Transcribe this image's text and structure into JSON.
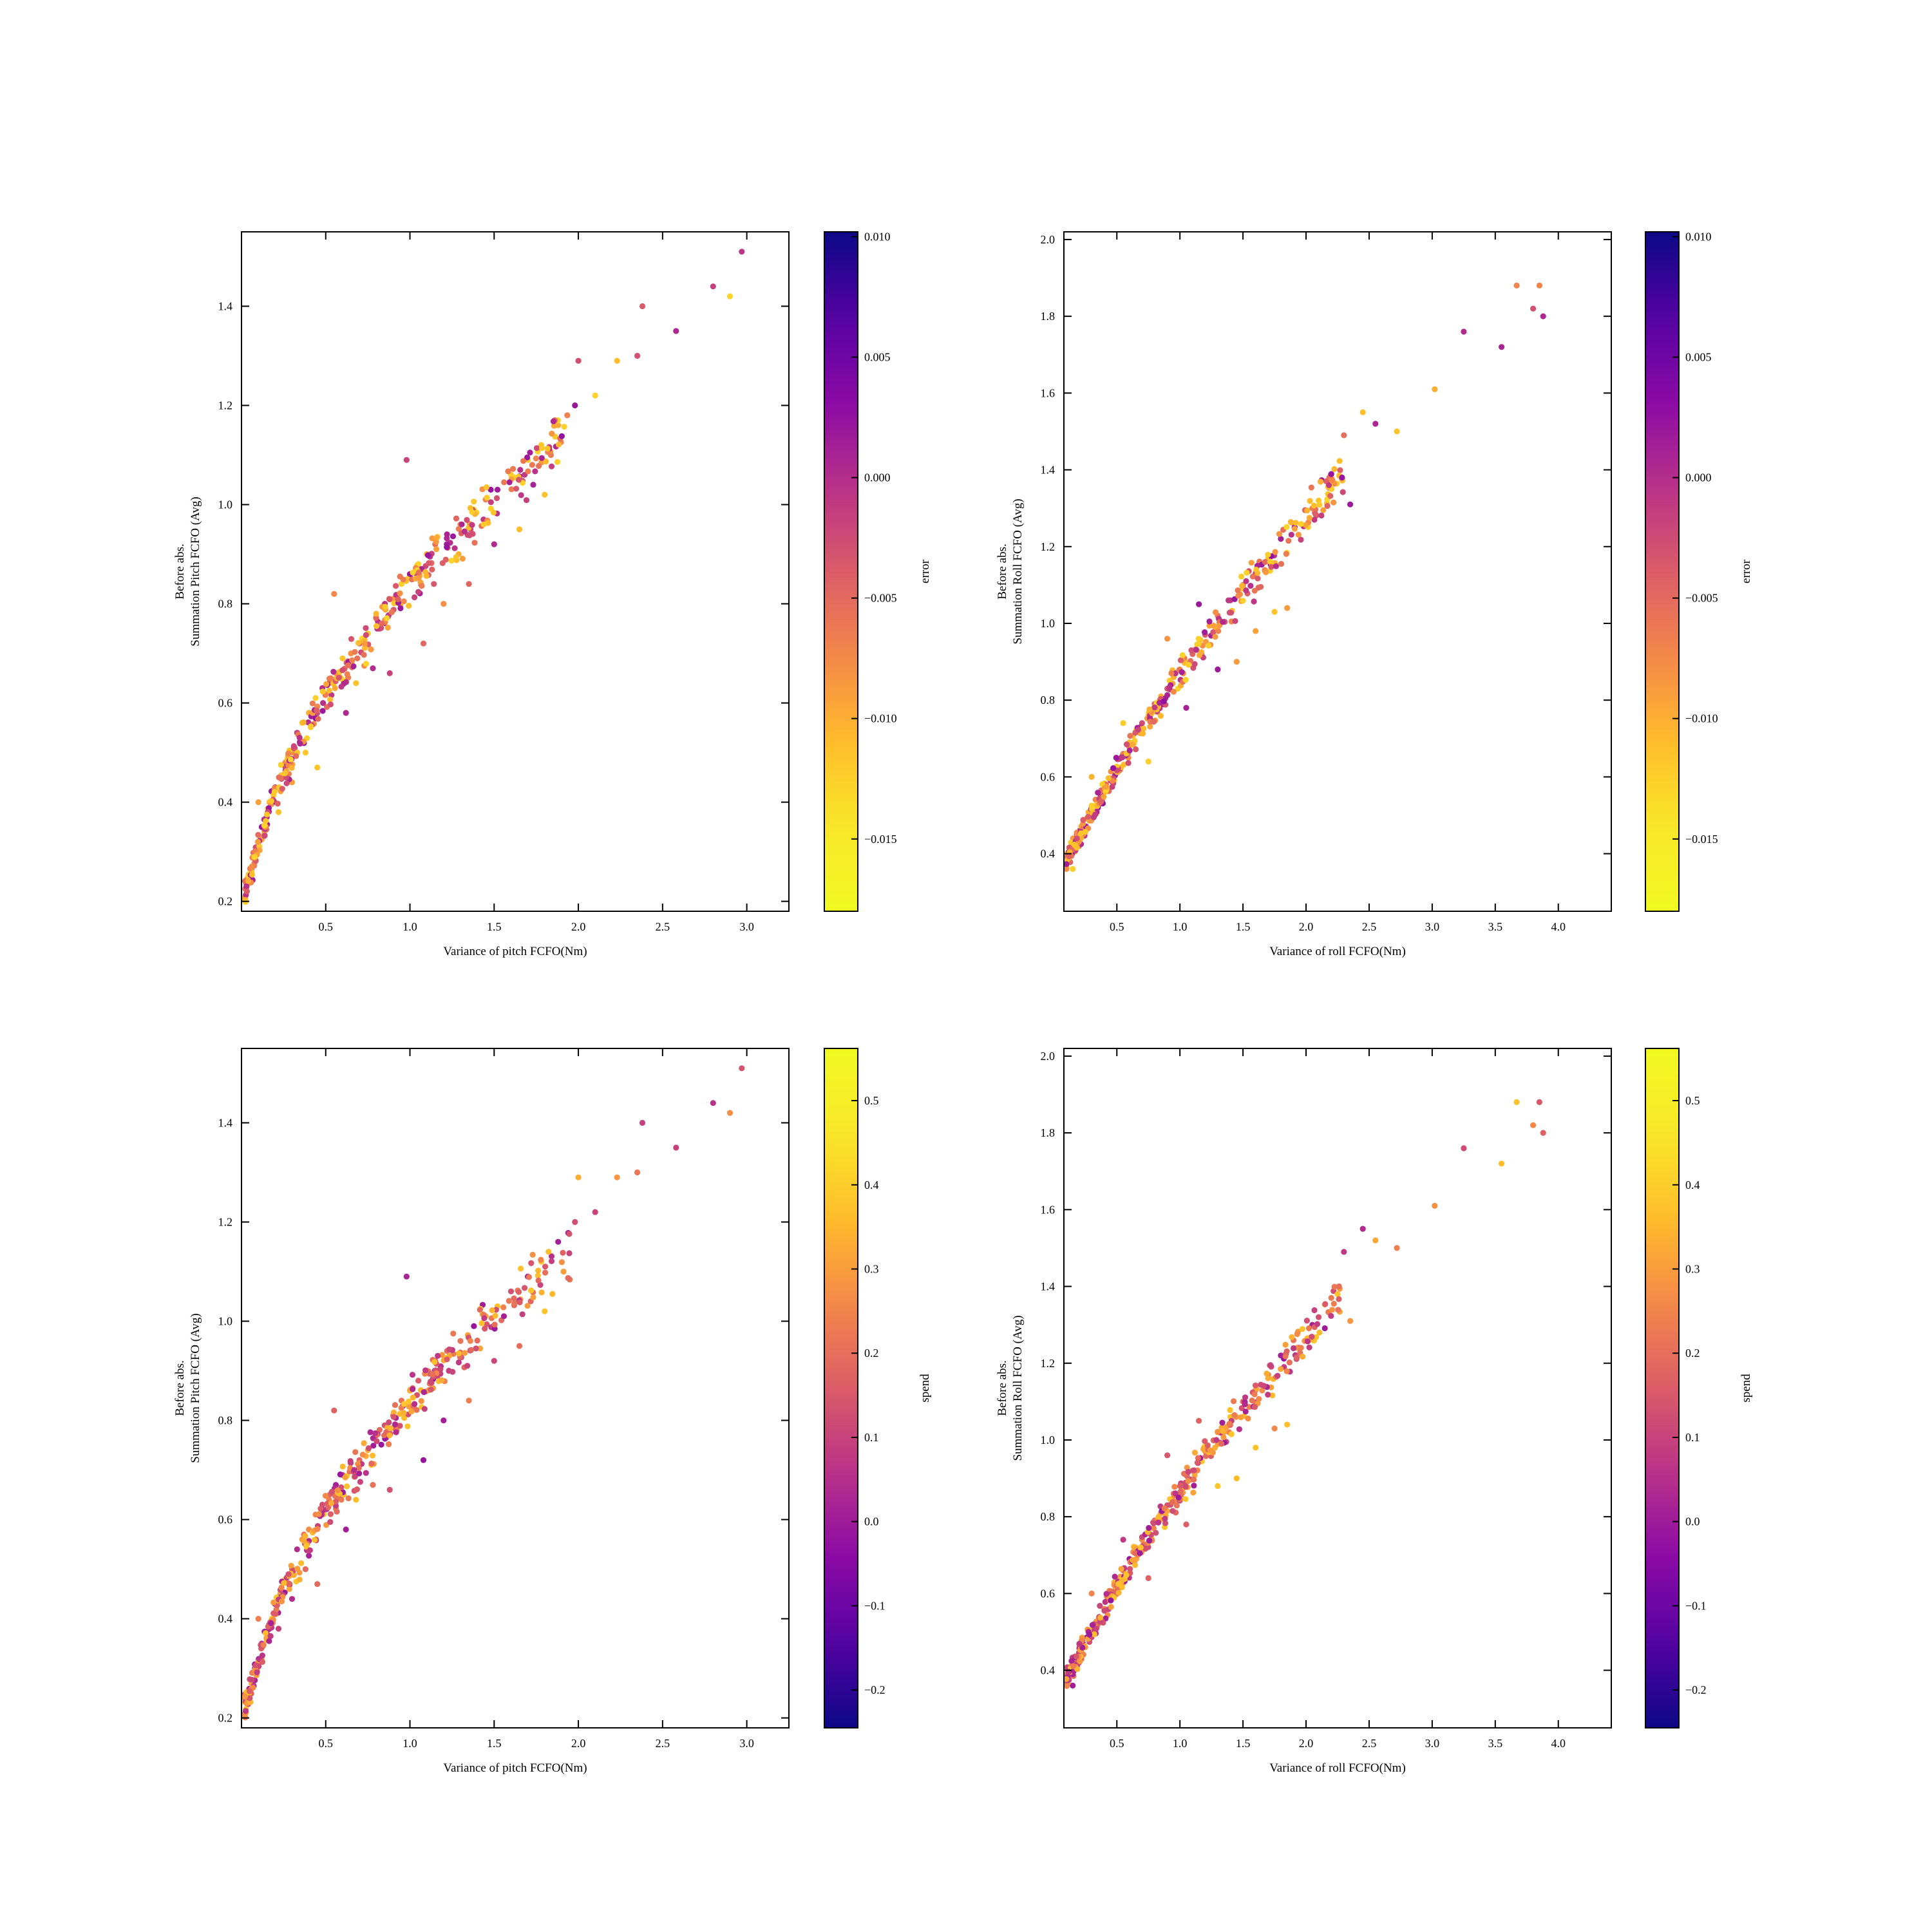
{
  "chart_data": [
    {
      "type": "scatter",
      "xlabel": "Variance of pitch FCFO(Nm)",
      "ylabel_lines": [
        "Before abs.",
        "Summation Pitch FCFO (Avg)"
      ],
      "xlim": [
        0.0,
        3.25
      ],
      "ylim": [
        0.18,
        1.55
      ],
      "xticks": [
        "0.5",
        "1.0",
        "1.5",
        "2.0",
        "2.5",
        "3.0"
      ],
      "yticks": [
        "0.2",
        "0.4",
        "0.6",
        "0.8",
        "1.0",
        "1.2",
        "1.4"
      ],
      "colorbar": {
        "label": "error",
        "colormap": "plasma",
        "reversed": true,
        "range": [
          -0.018,
          0.0102
        ],
        "ticks": [
          "0.010",
          "0.005",
          "0.000",
          "−0.005",
          "−0.010",
          "−0.015"
        ]
      },
      "points": [
        [
          0.03,
          0.23
        ],
        [
          0.05,
          0.25
        ],
        [
          0.06,
          0.27
        ],
        [
          0.08,
          0.3
        ],
        [
          0.1,
          0.31
        ],
        [
          0.12,
          0.35
        ],
        [
          0.15,
          0.37
        ],
        [
          0.18,
          0.4
        ],
        [
          0.2,
          0.43
        ],
        [
          0.23,
          0.45
        ],
        [
          0.26,
          0.48
        ],
        [
          0.3,
          0.5
        ],
        [
          0.33,
          0.54
        ],
        [
          0.36,
          0.56
        ],
        [
          0.4,
          0.58
        ],
        [
          0.44,
          0.61
        ],
        [
          0.48,
          0.63
        ],
        [
          0.52,
          0.64
        ],
        [
          0.56,
          0.66
        ],
        [
          0.6,
          0.69
        ],
        [
          0.65,
          0.7
        ],
        [
          0.7,
          0.72
        ],
        [
          0.75,
          0.74
        ],
        [
          0.8,
          0.77
        ],
        [
          0.85,
          0.79
        ],
        [
          0.9,
          0.81
        ],
        [
          0.95,
          0.84
        ],
        [
          1.0,
          0.86
        ],
        [
          1.05,
          0.88
        ],
        [
          1.1,
          0.9
        ],
        [
          1.15,
          0.92
        ],
        [
          1.22,
          0.94
        ],
        [
          1.3,
          0.96
        ],
        [
          1.38,
          0.99
        ],
        [
          1.45,
          1.01
        ],
        [
          1.52,
          1.03
        ],
        [
          1.6,
          1.06
        ],
        [
          1.7,
          1.09
        ],
        [
          1.78,
          1.12
        ],
        [
          1.88,
          1.16
        ],
        [
          1.98,
          1.2
        ],
        [
          2.1,
          1.22
        ],
        [
          2.23,
          1.29
        ],
        [
          2.35,
          1.3
        ],
        [
          2.58,
          1.35
        ],
        [
          2.8,
          1.44
        ],
        [
          2.97,
          1.51
        ],
        [
          0.1,
          0.4
        ],
        [
          0.22,
          0.38
        ],
        [
          0.3,
          0.44
        ],
        [
          0.38,
          0.5
        ],
        [
          0.45,
          0.47
        ],
        [
          0.55,
          0.82
        ],
        [
          0.62,
          0.58
        ],
        [
          0.68,
          0.64
        ],
        [
          0.78,
          0.67
        ],
        [
          0.88,
          0.66
        ],
        [
          0.98,
          1.09
        ],
        [
          1.08,
          0.72
        ],
        [
          1.2,
          0.8
        ],
        [
          1.35,
          0.84
        ],
        [
          1.5,
          0.92
        ],
        [
          1.65,
          0.95
        ],
        [
          1.8,
          1.02
        ],
        [
          2.0,
          1.29
        ],
        [
          2.38,
          1.4
        ],
        [
          2.9,
          1.42
        ]
      ]
    },
    {
      "type": "scatter",
      "xlabel": "Variance of roll FCFO(Nm)",
      "ylabel_lines": [
        "Before abs.",
        "Summation Roll FCFO (Avg)"
      ],
      "xlim": [
        0.08,
        4.42
      ],
      "ylim": [
        0.25,
        2.02
      ],
      "xticks": [
        "0.5",
        "1.0",
        "1.5",
        "2.0",
        "2.5",
        "3.0",
        "3.5",
        "4.0"
      ],
      "yticks": [
        "0.4",
        "0.6",
        "0.8",
        "1.0",
        "1.2",
        "1.4",
        "1.6",
        "1.8",
        "2.0"
      ],
      "colorbar": {
        "label": "error",
        "colormap": "plasma",
        "reversed": true,
        "range": [
          -0.018,
          0.0102
        ],
        "ticks": [
          "0.010",
          "0.005",
          "0.000",
          "−0.005",
          "−0.010",
          "−0.015"
        ]
      },
      "points": [
        [
          0.1,
          0.38
        ],
        [
          0.15,
          0.36
        ],
        [
          0.2,
          0.42
        ],
        [
          0.25,
          0.46
        ],
        [
          0.3,
          0.49
        ],
        [
          0.35,
          0.52
        ],
        [
          0.4,
          0.56
        ],
        [
          0.45,
          0.59
        ],
        [
          0.5,
          0.62
        ],
        [
          0.55,
          0.66
        ],
        [
          0.6,
          0.69
        ],
        [
          0.65,
          0.72
        ],
        [
          0.7,
          0.74
        ],
        [
          0.75,
          0.76
        ],
        [
          0.8,
          0.79
        ],
        [
          0.85,
          0.81
        ],
        [
          0.9,
          0.83
        ],
        [
          0.95,
          0.86
        ],
        [
          1.0,
          0.88
        ],
        [
          1.1,
          0.92
        ],
        [
          1.2,
          0.97
        ],
        [
          1.3,
          1.02
        ],
        [
          1.4,
          1.06
        ],
        [
          1.5,
          1.1
        ],
        [
          1.6,
          1.13
        ],
        [
          1.7,
          1.17
        ],
        [
          1.8,
          1.22
        ],
        [
          1.9,
          1.26
        ],
        [
          2.1,
          1.32
        ],
        [
          2.2,
          1.37
        ],
        [
          2.3,
          1.49
        ],
        [
          2.45,
          1.55
        ],
        [
          2.55,
          1.52
        ],
        [
          2.72,
          1.5
        ],
        [
          3.02,
          1.61
        ],
        [
          3.25,
          1.76
        ],
        [
          3.55,
          1.72
        ],
        [
          3.67,
          1.88
        ],
        [
          3.8,
          1.82
        ],
        [
          3.88,
          1.8
        ],
        [
          0.3,
          0.6
        ],
        [
          0.55,
          0.74
        ],
        [
          0.75,
          0.64
        ],
        [
          0.9,
          0.96
        ],
        [
          1.05,
          0.78
        ],
        [
          1.15,
          1.05
        ],
        [
          1.3,
          0.88
        ],
        [
          1.45,
          0.9
        ],
        [
          1.6,
          0.98
        ],
        [
          1.75,
          1.03
        ],
        [
          1.85,
          1.04
        ],
        [
          2.05,
          1.3
        ],
        [
          2.35,
          1.31
        ],
        [
          3.85,
          1.88
        ]
      ]
    },
    {
      "type": "scatter",
      "xlabel": "Variance of pitch FCFO(Nm)",
      "ylabel_lines": [
        "Before abs.",
        "Summation Pitch FCFO (Avg)"
      ],
      "xlim": [
        0.0,
        3.25
      ],
      "ylim": [
        0.18,
        1.55
      ],
      "xticks": [
        "0.5",
        "1.0",
        "1.5",
        "2.0",
        "2.5",
        "3.0"
      ],
      "yticks": [
        "0.2",
        "0.4",
        "0.6",
        "0.8",
        "1.0",
        "1.2",
        "1.4"
      ],
      "colorbar": {
        "label": "spend",
        "colormap": "plasma",
        "reversed": false,
        "range": [
          -0.245,
          0.562
        ],
        "ticks": [
          "0.5",
          "0.4",
          "0.3",
          "0.2",
          "0.1",
          "0.0",
          "−0.1",
          "−0.2"
        ]
      },
      "points": [
        [
          0.03,
          0.23
        ],
        [
          0.05,
          0.25
        ],
        [
          0.06,
          0.27
        ],
        [
          0.08,
          0.3
        ],
        [
          0.1,
          0.31
        ],
        [
          0.12,
          0.35
        ],
        [
          0.15,
          0.37
        ],
        [
          0.18,
          0.4
        ],
        [
          0.2,
          0.43
        ],
        [
          0.23,
          0.45
        ],
        [
          0.26,
          0.48
        ],
        [
          0.3,
          0.5
        ],
        [
          0.33,
          0.54
        ],
        [
          0.36,
          0.56
        ],
        [
          0.4,
          0.58
        ],
        [
          0.44,
          0.61
        ],
        [
          0.48,
          0.63
        ],
        [
          0.52,
          0.64
        ],
        [
          0.56,
          0.66
        ],
        [
          0.6,
          0.69
        ],
        [
          0.65,
          0.7
        ],
        [
          0.7,
          0.72
        ],
        [
          0.75,
          0.74
        ],
        [
          0.8,
          0.77
        ],
        [
          0.85,
          0.79
        ],
        [
          0.9,
          0.81
        ],
        [
          0.95,
          0.84
        ],
        [
          1.0,
          0.86
        ],
        [
          1.05,
          0.88
        ],
        [
          1.1,
          0.9
        ],
        [
          1.15,
          0.92
        ],
        [
          1.22,
          0.94
        ],
        [
          1.3,
          0.96
        ],
        [
          1.38,
          0.99
        ],
        [
          1.45,
          1.01
        ],
        [
          1.52,
          1.03
        ],
        [
          1.6,
          1.06
        ],
        [
          1.7,
          1.09
        ],
        [
          1.78,
          1.12
        ],
        [
          1.88,
          1.16
        ],
        [
          1.98,
          1.2
        ],
        [
          2.1,
          1.22
        ],
        [
          2.23,
          1.29
        ],
        [
          2.35,
          1.3
        ],
        [
          2.58,
          1.35
        ],
        [
          2.8,
          1.44
        ],
        [
          2.97,
          1.51
        ],
        [
          0.1,
          0.4
        ],
        [
          0.22,
          0.38
        ],
        [
          0.3,
          0.44
        ],
        [
          0.38,
          0.5
        ],
        [
          0.45,
          0.47
        ],
        [
          0.55,
          0.82
        ],
        [
          0.62,
          0.58
        ],
        [
          0.68,
          0.64
        ],
        [
          0.78,
          0.67
        ],
        [
          0.88,
          0.66
        ],
        [
          0.98,
          1.09
        ],
        [
          1.08,
          0.72
        ],
        [
          1.2,
          0.8
        ],
        [
          1.35,
          0.84
        ],
        [
          1.5,
          0.92
        ],
        [
          1.65,
          0.95
        ],
        [
          1.8,
          1.02
        ],
        [
          2.0,
          1.29
        ],
        [
          2.38,
          1.4
        ],
        [
          2.9,
          1.42
        ]
      ]
    },
    {
      "type": "scatter",
      "xlabel": "Variance of roll FCFO(Nm)",
      "ylabel_lines": [
        "Before abs.",
        "Summation Roll FCFO (Avg)"
      ],
      "xlim": [
        0.08,
        4.42
      ],
      "ylim": [
        0.25,
        2.02
      ],
      "xticks": [
        "0.5",
        "1.0",
        "1.5",
        "2.0",
        "2.5",
        "3.0",
        "3.5",
        "4.0"
      ],
      "yticks": [
        "0.4",
        "0.6",
        "0.8",
        "1.0",
        "1.2",
        "1.4",
        "1.6",
        "1.8",
        "2.0"
      ],
      "colorbar": {
        "label": "spend",
        "colormap": "plasma",
        "reversed": false,
        "range": [
          -0.245,
          0.562
        ],
        "ticks": [
          "0.5",
          "0.4",
          "0.3",
          "0.2",
          "0.1",
          "0.0",
          "−0.1",
          "−0.2"
        ]
      },
      "points": [
        [
          0.1,
          0.38
        ],
        [
          0.15,
          0.36
        ],
        [
          0.2,
          0.42
        ],
        [
          0.25,
          0.46
        ],
        [
          0.3,
          0.49
        ],
        [
          0.35,
          0.52
        ],
        [
          0.4,
          0.56
        ],
        [
          0.45,
          0.59
        ],
        [
          0.5,
          0.62
        ],
        [
          0.55,
          0.66
        ],
        [
          0.6,
          0.69
        ],
        [
          0.65,
          0.72
        ],
        [
          0.7,
          0.74
        ],
        [
          0.75,
          0.76
        ],
        [
          0.8,
          0.79
        ],
        [
          0.85,
          0.81
        ],
        [
          0.9,
          0.83
        ],
        [
          0.95,
          0.86
        ],
        [
          1.0,
          0.88
        ],
        [
          1.1,
          0.92
        ],
        [
          1.2,
          0.97
        ],
        [
          1.3,
          1.02
        ],
        [
          1.4,
          1.06
        ],
        [
          1.5,
          1.1
        ],
        [
          1.6,
          1.13
        ],
        [
          1.7,
          1.17
        ],
        [
          1.8,
          1.22
        ],
        [
          1.9,
          1.26
        ],
        [
          2.1,
          1.32
        ],
        [
          2.2,
          1.37
        ],
        [
          2.3,
          1.49
        ],
        [
          2.45,
          1.55
        ],
        [
          2.55,
          1.52
        ],
        [
          2.72,
          1.5
        ],
        [
          3.02,
          1.61
        ],
        [
          3.25,
          1.76
        ],
        [
          3.55,
          1.72
        ],
        [
          3.67,
          1.88
        ],
        [
          3.8,
          1.82
        ],
        [
          3.88,
          1.8
        ],
        [
          0.3,
          0.6
        ],
        [
          0.55,
          0.74
        ],
        [
          0.75,
          0.64
        ],
        [
          0.9,
          0.96
        ],
        [
          1.05,
          0.78
        ],
        [
          1.15,
          1.05
        ],
        [
          1.3,
          0.88
        ],
        [
          1.45,
          0.9
        ],
        [
          1.6,
          0.98
        ],
        [
          1.75,
          1.03
        ],
        [
          1.85,
          1.04
        ],
        [
          2.05,
          1.3
        ],
        [
          2.35,
          1.31
        ],
        [
          3.85,
          1.88
        ]
      ]
    }
  ]
}
